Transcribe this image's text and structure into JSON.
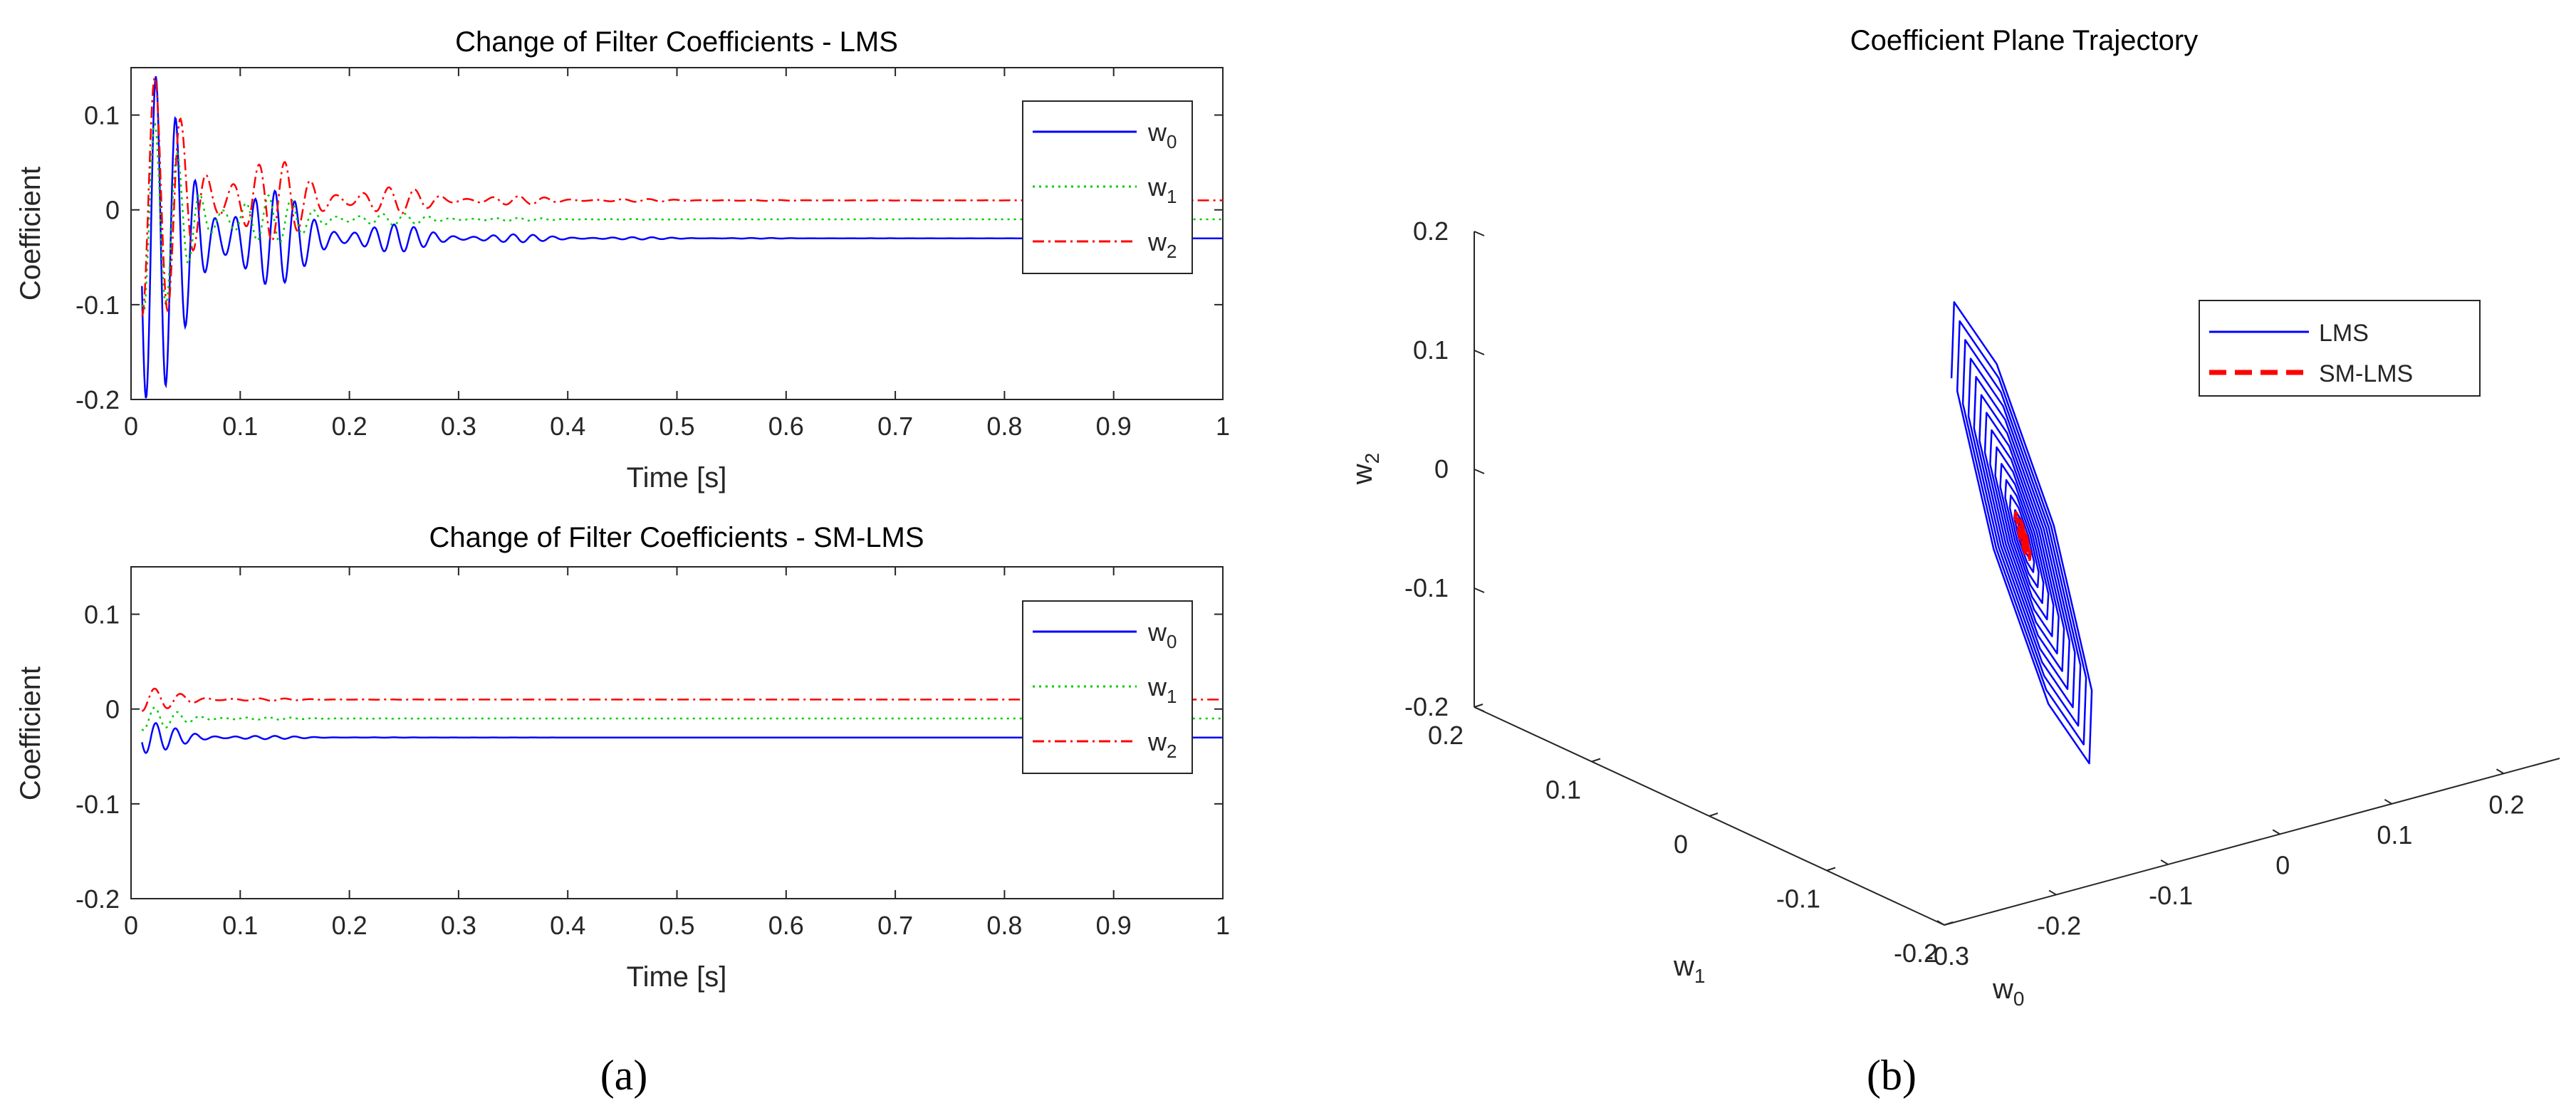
{
  "charts": [
    {
      "type": "line",
      "title": "Change of Filter Coefficients - LMS",
      "xlabel": "Time [s]",
      "ylabel": "Coefficient",
      "xlim": [
        0,
        1
      ],
      "ylim": [
        -0.2,
        0.15
      ],
      "xticks": [
        "0",
        "0.1",
        "0.2",
        "0.3",
        "0.4",
        "0.5",
        "0.6",
        "0.7",
        "0.8",
        "0.9",
        "1"
      ],
      "yticks": [
        "-0.2",
        "-0.1",
        "0",
        "0.1"
      ],
      "legend": [
        {
          "base": "w",
          "sub": "0",
          "color": "#0000ff",
          "dash": "solid"
        },
        {
          "base": "w",
          "sub": "1",
          "color": "#00cc00",
          "dash": "dotted"
        },
        {
          "base": "w",
          "sub": "2",
          "color": "#ff0000",
          "dash": "dashdot"
        }
      ]
    },
    {
      "type": "line",
      "title": "Change of Filter Coefficients - SM-LMS",
      "xlabel": "Time [s]",
      "ylabel": "Coefficient",
      "xlim": [
        0,
        1
      ],
      "ylim": [
        -0.2,
        0.15
      ],
      "xticks": [
        "0",
        "0.1",
        "0.2",
        "0.3",
        "0.4",
        "0.5",
        "0.6",
        "0.7",
        "0.8",
        "0.9",
        "1"
      ],
      "yticks": [
        "-0.2",
        "-0.1",
        "0",
        "0.1"
      ],
      "legend": [
        {
          "base": "w",
          "sub": "0",
          "color": "#0000ff",
          "dash": "solid"
        },
        {
          "base": "w",
          "sub": "1",
          "color": "#00cc00",
          "dash": "dotted"
        },
        {
          "base": "w",
          "sub": "2",
          "color": "#ff0000",
          "dash": "dashdot"
        }
      ]
    },
    {
      "type": "line3d",
      "title": "Coefficient Plane Trajectory",
      "zticks": [
        "-0.2",
        "-0.1",
        "0",
        "0.1",
        "0.2"
      ],
      "w1ticks": [
        "0.2",
        "0.1",
        "0",
        "-0.1",
        "-0.2"
      ],
      "w0ticks": [
        "-0.3",
        "-0.2",
        "-0.1",
        "0",
        "0.1",
        "0.2"
      ],
      "zlabel": {
        "base": "w",
        "sub": "2"
      },
      "w1label": {
        "base": "w",
        "sub": "1"
      },
      "w0label": {
        "base": "w",
        "sub": "0"
      },
      "legend": [
        {
          "label": "LMS",
          "color": "#0000ff",
          "dash": "solid"
        },
        {
          "label": "SM-LMS",
          "color": "#ff0000",
          "dash": "dashed"
        }
      ]
    }
  ],
  "chart_data": [
    {
      "type": "line",
      "title": "Change of Filter Coefficients - LMS",
      "xlabel": "Time [s]",
      "ylabel": "Coefficient",
      "xlim": [
        0,
        1
      ],
      "ylim": [
        -0.2,
        0.15
      ],
      "series": [
        {
          "name": "w0",
          "final": -0.03,
          "initial_amplitude": 0.2,
          "decay_time": 0.09,
          "color": "#0000ff"
        },
        {
          "name": "w1",
          "final": -0.01,
          "initial_amplitude": 0.12,
          "decay_time": 0.08,
          "color": "#00cc00"
        },
        {
          "name": "w2",
          "final": 0.01,
          "initial_amplitude": 0.15,
          "decay_time": 0.1,
          "color": "#ff0000"
        }
      ]
    },
    {
      "type": "line",
      "title": "Change of Filter Coefficients - SM-LMS",
      "xlabel": "Time [s]",
      "ylabel": "Coefficient",
      "xlim": [
        0,
        1
      ],
      "ylim": [
        -0.2,
        0.15
      ],
      "series": [
        {
          "name": "w0",
          "final": -0.03,
          "initial_amplitude": 0.02,
          "decay_time": 0.05,
          "color": "#0000ff"
        },
        {
          "name": "w1",
          "final": -0.01,
          "initial_amplitude": 0.015,
          "decay_time": 0.05,
          "color": "#00cc00"
        },
        {
          "name": "w2",
          "final": 0.01,
          "initial_amplitude": 0.015,
          "decay_time": 0.05,
          "color": "#ff0000"
        }
      ]
    },
    {
      "type": "line3d",
      "title": "Coefficient Plane Trajectory",
      "xlabel": "w0",
      "ylabel": "w1",
      "zlabel": "w2",
      "xlim": [
        -0.3,
        0.25
      ],
      "ylim": [
        -0.2,
        0.2
      ],
      "zlim": [
        -0.2,
        0.2
      ],
      "series": [
        {
          "name": "LMS",
          "center": [
            -0.03,
            -0.01,
            -0.03
          ],
          "max_radius": 0.22,
          "turns": 14
        },
        {
          "name": "SM-LMS",
          "center": [
            -0.03,
            -0.01,
            -0.03
          ],
          "max_radius": 0.02,
          "turns": 4
        }
      ]
    }
  ],
  "captions": [
    "(a)",
    "(b)"
  ]
}
